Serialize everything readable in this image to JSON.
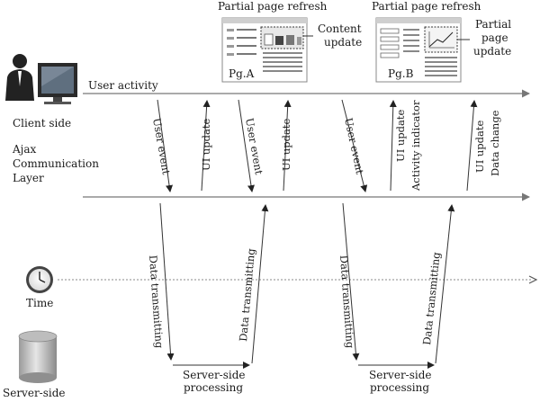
{
  "client_label": "Client side",
  "ajax_label": [
    "Ajax",
    "Communication",
    "Layer"
  ],
  "time_label": "Time",
  "server_label": "Server-side",
  "user_activity_label": "User activity",
  "page_a": {
    "refresh_label": "Partial page refresh",
    "page_label": "Pg.A",
    "update_label": [
      "Content",
      "update"
    ]
  },
  "page_b": {
    "refresh_label": "Partial page refresh",
    "page_label": "Pg.B",
    "update_label": [
      "Partial",
      "page",
      "update"
    ]
  },
  "arrows": {
    "user_event": "User event",
    "ui_update": "UI update",
    "activity_indicator": "Activity indicator",
    "data_change": "Data change",
    "data_transmitting": "Data transmitting"
  },
  "processing_label": [
    "Server-side",
    "processing"
  ]
}
